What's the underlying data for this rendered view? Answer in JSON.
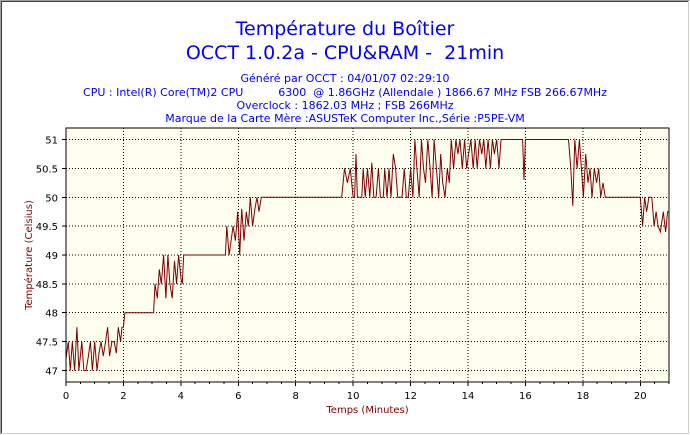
{
  "chart_data": {
    "type": "line",
    "title": "Température du Boîtier",
    "subtitle": "OCCT 1.0.2a - CPU&RAM -  21min",
    "info_lines": [
      "Généré par OCCT : 04/01/07 02:29:10",
      "CPU : Intel(R) Core(TM)2 CPU          6300  @ 1.86GHz (Allendale ) 1866.67 MHz FSB 266.67MHz",
      "Overclock : 1862.03 MHz ; FSB 266MHz",
      "Marque de la Carte Mère :ASUSTeK Computer Inc.,Série :P5PE-VM"
    ],
    "xlabel": "Temps (Minutes)",
    "ylabel": "Température (Celsius)",
    "xlim": [
      0,
      21
    ],
    "ylim": [
      46.8,
      51.2
    ],
    "x_ticks": [
      0,
      2,
      4,
      6,
      8,
      10,
      12,
      14,
      16,
      18,
      20
    ],
    "y_ticks": [
      47,
      47.5,
      48,
      48.5,
      49,
      49.5,
      50,
      50.5,
      51
    ],
    "grid": true,
    "colors": {
      "line": "#800000",
      "plot_background": "#fffff0",
      "grid": "#000000",
      "title": "#0000ff",
      "axis_label": "#800000"
    },
    "series": [
      {
        "values": [
          [
            0,
            47.2
          ],
          [
            0.08,
            47.5
          ],
          [
            0.15,
            47.0
          ],
          [
            0.22,
            47.5
          ],
          [
            0.3,
            47.0
          ],
          [
            0.38,
            47.75
          ],
          [
            0.45,
            47.0
          ],
          [
            0.55,
            47.5
          ],
          [
            0.62,
            47.0
          ],
          [
            0.7,
            47.0
          ],
          [
            0.78,
            47.25
          ],
          [
            0.85,
            47.5
          ],
          [
            0.92,
            47.0
          ],
          [
            1.0,
            47.5
          ],
          [
            1.08,
            47.0
          ],
          [
            1.15,
            47.3
          ],
          [
            1.22,
            47.5
          ],
          [
            1.3,
            47.25
          ],
          [
            1.38,
            47.5
          ],
          [
            1.45,
            47.75
          ],
          [
            1.52,
            47.25
          ],
          [
            1.6,
            47.5
          ],
          [
            1.68,
            47.5
          ],
          [
            1.75,
            47.3
          ],
          [
            1.82,
            47.75
          ],
          [
            1.9,
            47.5
          ],
          [
            1.95,
            47.75
          ],
          [
            2.0,
            47.75
          ],
          [
            2.05,
            48.0
          ],
          [
            3.05,
            48.0
          ],
          [
            3.1,
            48.5
          ],
          [
            3.18,
            48.25
          ],
          [
            3.25,
            48.75
          ],
          [
            3.32,
            48.5
          ],
          [
            3.4,
            49.0
          ],
          [
            3.48,
            48.25
          ],
          [
            3.55,
            49.0
          ],
          [
            3.62,
            48.5
          ],
          [
            3.7,
            48.25
          ],
          [
            3.78,
            48.9
          ],
          [
            3.85,
            48.5
          ],
          [
            3.92,
            49.0
          ],
          [
            4.0,
            48.6
          ],
          [
            4.05,
            48.5
          ],
          [
            4.1,
            49.0
          ],
          [
            5.55,
            49.0
          ],
          [
            5.6,
            49.5
          ],
          [
            5.68,
            49.0
          ],
          [
            5.75,
            49.25
          ],
          [
            5.82,
            49.5
          ],
          [
            5.9,
            49.25
          ],
          [
            5.98,
            49.75
          ],
          [
            6.05,
            49.0
          ],
          [
            6.12,
            49.8
          ],
          [
            6.2,
            49.25
          ],
          [
            6.28,
            49.75
          ],
          [
            6.35,
            49.5
          ],
          [
            6.42,
            50.0
          ],
          [
            6.5,
            49.5
          ],
          [
            6.58,
            49.8
          ],
          [
            6.65,
            50.0
          ],
          [
            6.72,
            49.75
          ],
          [
            6.8,
            50.0
          ],
          [
            9.6,
            50.0
          ],
          [
            9.7,
            50.5
          ],
          [
            9.8,
            50.25
          ],
          [
            9.9,
            50.5
          ],
          [
            10.0,
            50.0
          ],
          [
            10.05,
            50.0
          ],
          [
            10.1,
            50.75
          ],
          [
            10.15,
            50.0
          ],
          [
            10.3,
            50.0
          ],
          [
            10.35,
            50.5
          ],
          [
            10.42,
            50.0
          ],
          [
            10.5,
            50.5
          ],
          [
            10.58,
            50.0
          ],
          [
            10.65,
            50.6
          ],
          [
            10.72,
            50.0
          ],
          [
            10.8,
            50.0
          ],
          [
            10.88,
            50.5
          ],
          [
            10.95,
            50.0
          ],
          [
            11.05,
            50.0
          ],
          [
            11.1,
            50.5
          ],
          [
            11.18,
            50.0
          ],
          [
            11.25,
            50.5
          ],
          [
            11.32,
            50.0
          ],
          [
            11.4,
            50.75
          ],
          [
            11.48,
            50.5
          ],
          [
            11.55,
            50.0
          ],
          [
            11.7,
            50.0
          ],
          [
            11.78,
            50.5
          ],
          [
            11.85,
            50.0
          ],
          [
            11.92,
            50.0
          ],
          [
            12.0,
            50.5
          ],
          [
            12.08,
            50.0
          ],
          [
            12.15,
            51.0
          ],
          [
            12.22,
            50.5
          ],
          [
            12.3,
            50.0
          ],
          [
            12.38,
            51.0
          ],
          [
            12.45,
            50.5
          ],
          [
            12.52,
            50.25
          ],
          [
            12.6,
            51.0
          ],
          [
            12.68,
            50.5
          ],
          [
            12.75,
            50.0
          ],
          [
            12.82,
            51.0
          ],
          [
            12.9,
            50.5
          ],
          [
            12.98,
            50.0
          ],
          [
            13.05,
            50.75
          ],
          [
            13.12,
            50.25
          ],
          [
            13.2,
            50.0
          ],
          [
            13.28,
            50.5
          ],
          [
            13.35,
            50.25
          ],
          [
            13.42,
            51.0
          ],
          [
            13.5,
            50.5
          ],
          [
            13.58,
            51.0
          ],
          [
            13.65,
            50.75
          ],
          [
            13.72,
            51.0
          ],
          [
            13.8,
            50.5
          ],
          [
            13.88,
            51.0
          ],
          [
            13.95,
            50.5
          ],
          [
            14.02,
            50.75
          ],
          [
            14.1,
            51.0
          ],
          [
            14.18,
            50.5
          ],
          [
            14.25,
            51.0
          ],
          [
            14.32,
            50.5
          ],
          [
            14.4,
            51.0
          ],
          [
            14.48,
            50.75
          ],
          [
            14.55,
            51.0
          ],
          [
            14.62,
            50.5
          ],
          [
            14.7,
            51.0
          ],
          [
            14.78,
            50.5
          ],
          [
            14.85,
            51.0
          ],
          [
            14.92,
            50.75
          ],
          [
            15.0,
            51.0
          ],
          [
            15.08,
            50.5
          ],
          [
            15.15,
            51.0
          ],
          [
            15.9,
            51.0
          ],
          [
            15.95,
            50.3
          ],
          [
            16.0,
            51.0
          ],
          [
            17.5,
            51.0
          ],
          [
            17.58,
            50.5
          ],
          [
            17.65,
            49.85
          ],
          [
            17.72,
            51.0
          ],
          [
            17.8,
            50.5
          ],
          [
            17.88,
            51.0
          ],
          [
            17.95,
            50.5
          ],
          [
            18.02,
            50.0
          ],
          [
            18.1,
            50.75
          ],
          [
            18.18,
            50.25
          ],
          [
            18.25,
            50.5
          ],
          [
            18.32,
            50.0
          ],
          [
            18.4,
            50.5
          ],
          [
            18.48,
            50.25
          ],
          [
            18.55,
            50.5
          ],
          [
            18.62,
            50.0
          ],
          [
            18.7,
            50.25
          ],
          [
            18.78,
            50.0
          ],
          [
            20.0,
            50.0
          ],
          [
            20.08,
            49.5
          ],
          [
            20.15,
            50.0
          ],
          [
            20.22,
            49.75
          ],
          [
            20.3,
            50.0
          ],
          [
            20.4,
            50.0
          ],
          [
            20.48,
            49.5
          ],
          [
            20.55,
            49.75
          ],
          [
            20.62,
            49.5
          ],
          [
            20.7,
            49.4
          ],
          [
            20.8,
            49.75
          ],
          [
            20.88,
            49.4
          ],
          [
            20.95,
            49.75
          ],
          [
            21.0,
            49.75
          ]
        ]
      }
    ]
  }
}
